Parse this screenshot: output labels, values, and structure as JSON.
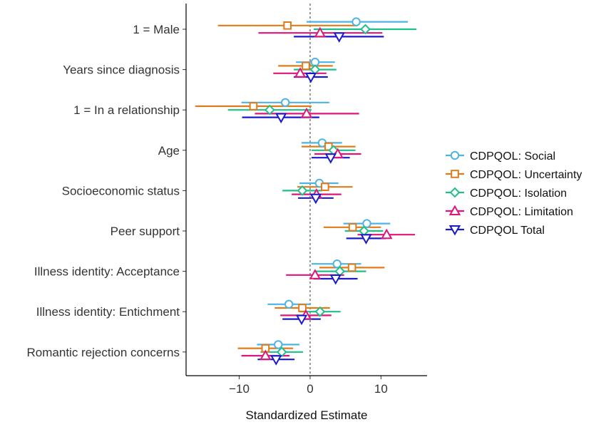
{
  "chart_data": {
    "type": "forest-plot",
    "title": "",
    "xlabel": "Standardized Estimate",
    "ylabel": "",
    "xlim": [
      -17.5,
      16.5
    ],
    "x_ticks": [
      -10,
      0,
      10
    ],
    "x_tick_labels": [
      "−10",
      "0",
      "10"
    ],
    "reference_line": 0,
    "grid": false,
    "legend_position": "right",
    "categories": [
      "1 = Male",
      "Years since diagnosis",
      "1 = In a relationship",
      "Age",
      "Socioeconomic status",
      "Peer support",
      "Illness identity: Acceptance",
      "Illness identity: Entichment",
      "Romantic rejection concerns"
    ],
    "series": [
      {
        "name": "CDPQOL: Social",
        "color": "#4db3e6",
        "marker": "circle",
        "estimates": [
          6.5,
          0.7,
          -3.5,
          1.7,
          1.3,
          8.0,
          3.8,
          -3.0,
          -4.5
        ],
        "lower": [
          -0.5,
          -2.0,
          -9.7,
          -1.2,
          -1.5,
          4.7,
          0.2,
          -6.0,
          -7.5
        ],
        "upper": [
          13.8,
          3.5,
          2.7,
          4.5,
          4.0,
          11.3,
          7.2,
          0.0,
          -1.5
        ]
      },
      {
        "name": "CDPQOL: Uncertainty",
        "color": "#e07b1a",
        "marker": "square",
        "estimates": [
          -3.2,
          -0.6,
          -8.0,
          2.6,
          2.1,
          6.0,
          5.9,
          -1.1,
          -6.3
        ],
        "lower": [
          -13.0,
          -4.5,
          -16.2,
          -1.2,
          -1.8,
          1.9,
          1.3,
          -5.0,
          -10.2
        ],
        "upper": [
          6.7,
          3.2,
          0.2,
          6.4,
          6.0,
          10.0,
          10.5,
          2.8,
          -2.4
        ]
      },
      {
        "name": "CDPQOL: Isolation",
        "color": "#1fbf8a",
        "marker": "diamond",
        "estimates": [
          7.8,
          0.7,
          -5.7,
          3.3,
          -1.1,
          7.6,
          4.2,
          1.4,
          -4.0
        ],
        "lower": [
          0.5,
          -2.3,
          -11.6,
          0.2,
          -3.9,
          4.9,
          0.5,
          -1.5,
          -7.0
        ],
        "upper": [
          15.0,
          3.7,
          0.2,
          6.4,
          1.7,
          10.3,
          7.9,
          4.3,
          -1.0
        ]
      },
      {
        "name": "CDPQOL: Limitation",
        "color": "#e0157a",
        "marker": "triangle-up",
        "estimates": [
          1.4,
          -1.4,
          -0.5,
          3.9,
          0.9,
          10.8,
          0.7,
          -0.6,
          -6.3
        ],
        "lower": [
          -7.3,
          -5.2,
          -7.8,
          0.6,
          -2.6,
          6.7,
          -3.4,
          -4.2,
          -9.7
        ],
        "upper": [
          10.2,
          2.3,
          6.9,
          7.2,
          4.4,
          14.8,
          4.8,
          3.0,
          -2.9
        ]
      },
      {
        "name": "CDPQOL Total",
        "color": "#1a1acc",
        "marker": "triangle-down",
        "estimates": [
          4.1,
          0.1,
          -4.1,
          2.9,
          0.8,
          7.9,
          3.6,
          -1.2,
          -4.8
        ],
        "lower": [
          -2.3,
          -2.3,
          -9.6,
          0.2,
          -1.7,
          5.1,
          0.5,
          -3.9,
          -7.4
        ],
        "upper": [
          10.4,
          2.5,
          1.3,
          5.6,
          3.3,
          10.7,
          6.7,
          1.5,
          -2.2
        ]
      }
    ]
  }
}
